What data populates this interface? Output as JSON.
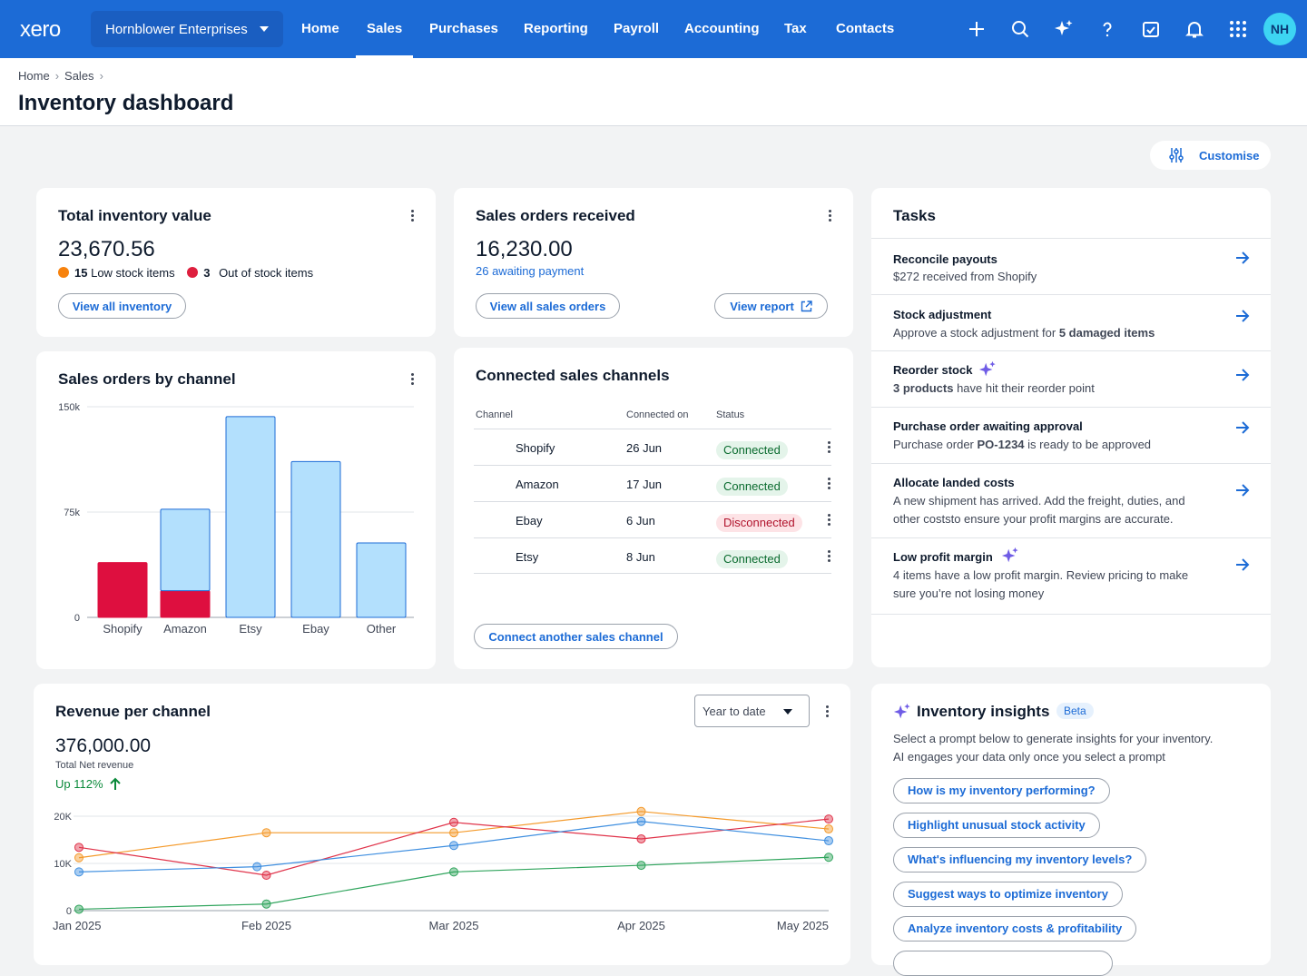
{
  "app": {
    "logo": "xero",
    "org_name": "Hornblower Enterprises",
    "avatar_initials": "NH",
    "accent": "#1c6bd6"
  },
  "nav": {
    "items": [
      "Home",
      "Sales",
      "Purchases",
      "Reporting",
      "Payroll",
      "Accounting",
      "Tax",
      "Contacts"
    ],
    "active": "Sales"
  },
  "top_icons": [
    "plus-icon",
    "search-icon",
    "sparkle-icon",
    "help-icon",
    "tasks-icon",
    "bell-icon",
    "apps-grid-icon"
  ],
  "breadcrumb": [
    "Home",
    "Sales"
  ],
  "page_title": "Inventory dashboard",
  "customise_label": "Customise",
  "inventory_value": {
    "title": "Total inventory value",
    "amount": "23,670.56",
    "low_stock_count": "15",
    "low_stock_label": "Low stock items",
    "out_stock_count": "3",
    "out_stock_label": "Out of stock items",
    "button": "View all inventory",
    "low_color": "#f7820d",
    "out_color": "#de1f3e"
  },
  "sales_orders": {
    "title": "Sales orders received",
    "amount": "16,230.00",
    "awaiting": "26 awaiting payment",
    "button_all": "View all sales orders",
    "button_report": "View report"
  },
  "tasks": {
    "title": "Tasks",
    "items": [
      {
        "title": "Reconcile payouts",
        "desc": "$272 received from Shopify",
        "ai": false
      },
      {
        "title": "Stock adjustment",
        "desc_pre": "Approve a stock adjustment for ",
        "desc_bold": "5 damaged items",
        "desc_post": "",
        "ai": false
      },
      {
        "title": "Reorder stock",
        "desc_pre": "",
        "desc_bold": "3 products",
        "desc_post": " have hit their reorder point",
        "ai": true
      },
      {
        "title": "Purchase order awaiting approval",
        "desc_pre": "Purchase order ",
        "desc_bold": "PO-1234",
        "desc_post": " is ready to be approved",
        "ai": false
      },
      {
        "title": "Allocate landed costs",
        "desc": "A new shipment has arrived. Add the freight, duties, and other coststo ensure your profit margins are accurate.",
        "ai": false
      },
      {
        "title": "Low profit margin",
        "desc": "4 items have a low profit margin. Review pricing to make sure you’re not losing money",
        "ai": true
      }
    ]
  },
  "channels_card": {
    "title": "Connected sales channels",
    "headers": [
      "Channel",
      "Connected on",
      "Status"
    ],
    "rows": [
      {
        "channel": "Shopify",
        "date": "26 Jun",
        "status": "Connected",
        "ok": true
      },
      {
        "channel": "Amazon",
        "date": "17 Jun",
        "status": "Connected",
        "ok": true
      },
      {
        "channel": "Ebay",
        "date": "6 Jun",
        "status": "Disconnected",
        "ok": false
      },
      {
        "channel": "Etsy",
        "date": "8 Jun",
        "status": "Connected",
        "ok": true
      }
    ],
    "button": "Connect another sales channel"
  },
  "orders_by_channel": {
    "title": "Sales orders by channel"
  },
  "revenue": {
    "title": "Revenue per channel",
    "amount": "376,000.00",
    "sub": "Total Net revenue",
    "change": "Up 112%",
    "period": "Year to date"
  },
  "insights": {
    "title": "Inventory insights",
    "badge": "Beta",
    "desc_line1": "Select a prompt below to generate insights for your inventory.",
    "desc_line2": "AI engages your data only once you select a prompt",
    "prompts": [
      "How is my inventory performing?",
      "Highlight unusual stock activity",
      "What's influencing my inventory levels?",
      "Suggest ways to optimize inventory",
      "Analyze inventory costs & profitability"
    ]
  },
  "chart_data": [
    {
      "type": "bar",
      "title": "Sales orders by channel",
      "categories": [
        "Shopify",
        "Amazon",
        "Etsy",
        "Ebay",
        "Other"
      ],
      "series": [
        {
          "values": [
            39000,
            19000,
            0,
            0,
            0
          ],
          "color": "#de0f3f"
        },
        {
          "values": [
            0,
            58000,
            143000,
            111000,
            53000
          ],
          "color": "#b3e0fd"
        }
      ],
      "stacked": true,
      "ylim": [
        0,
        150000
      ],
      "yticks": [
        "0",
        "75k",
        "150k"
      ],
      "ytick_values": [
        0,
        75000,
        150000
      ]
    },
    {
      "type": "line",
      "title": "Revenue per channel",
      "x": [
        "Jan 2025",
        "Feb 2025",
        "Mar 2025",
        "Apr 2025",
        "May 2025"
      ],
      "ylim": [
        0,
        20000
      ],
      "yticks": [
        "0",
        "10K",
        "20K"
      ],
      "ytick_values": [
        0,
        10000,
        20000
      ],
      "series": [
        {
          "color": "#f49a2b",
          "points": [
            [
              0,
              11200
            ],
            [
              1,
              16500
            ],
            [
              2,
              16500
            ],
            [
              3,
              21000
            ],
            [
              4,
              17300
            ]
          ]
        },
        {
          "color": "#e0334a",
          "points": [
            [
              0,
              13400
            ],
            [
              1,
              7500
            ],
            [
              2,
              18700
            ],
            [
              3,
              15200
            ],
            [
              4,
              19400
            ]
          ]
        },
        {
          "color": "#3f8fe0",
          "points": [
            [
              0,
              8200
            ],
            [
              0.95,
              9300
            ],
            [
              2,
              13800
            ],
            [
              3,
              18900
            ],
            [
              4,
              14800
            ]
          ]
        },
        {
          "color": "#2fa45c",
          "points": [
            [
              0,
              300
            ],
            [
              1,
              1400
            ],
            [
              2,
              8200
            ],
            [
              3,
              9600
            ],
            [
              4,
              11300
            ]
          ]
        }
      ]
    }
  ]
}
